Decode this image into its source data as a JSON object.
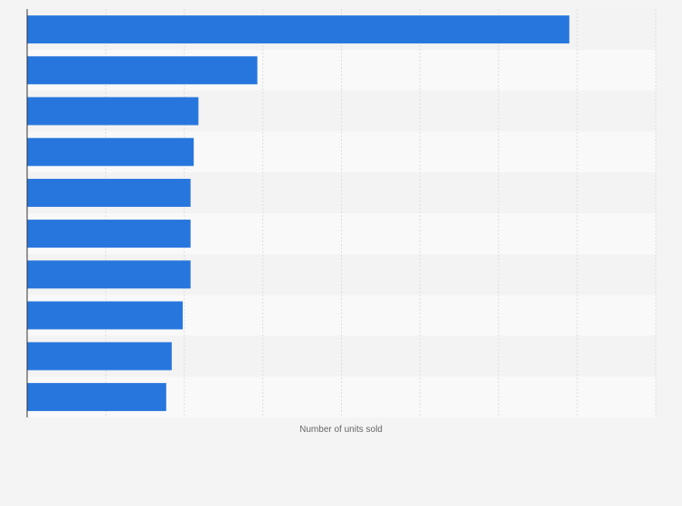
{
  "chart_data": {
    "type": "bar",
    "orientation": "horizontal",
    "categories": [
      "",
      "",
      "",
      "",
      "",
      "",
      "",
      "",
      "",
      ""
    ],
    "values": [
      69.0,
      29.3,
      21.8,
      21.2,
      20.8,
      20.8,
      20.8,
      19.8,
      18.4,
      17.7
    ],
    "xlabel": "Number of units sold",
    "xlim": [
      0,
      80
    ],
    "grid": true,
    "bar_color": "#2776de"
  }
}
